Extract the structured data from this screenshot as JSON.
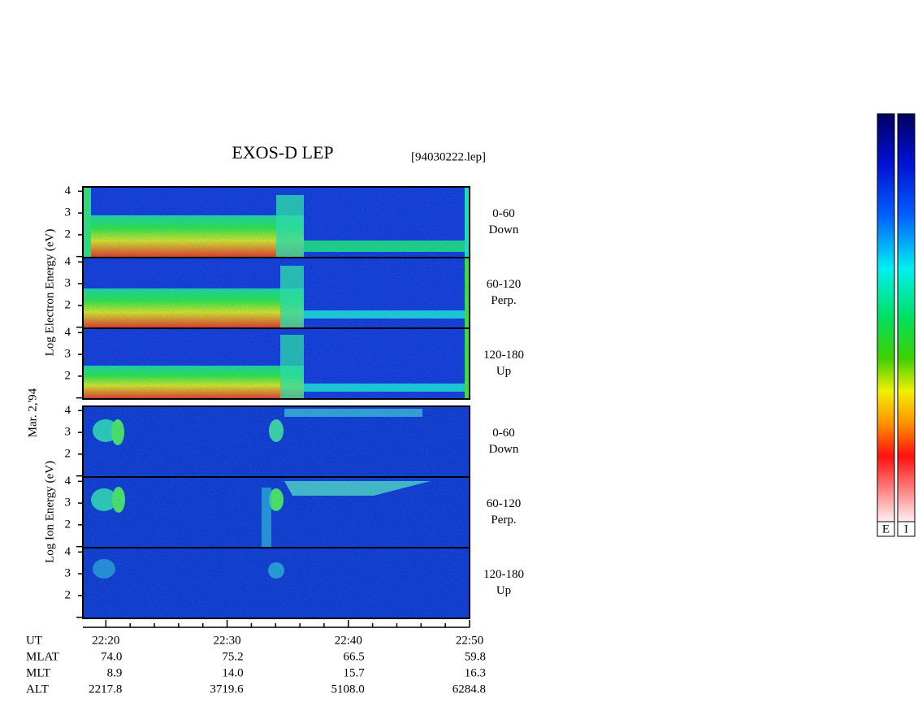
{
  "title": "EXOS-D LEP",
  "file": "[94030222.lep]",
  "date": "Mar. 2,'94",
  "ylim": [
    0.95,
    4.2
  ],
  "yticks": [
    2,
    3,
    4
  ],
  "yminor": [
    1
  ],
  "xlim": [
    1338.1,
    1370
  ],
  "xticks": [
    {
      "value": 1340,
      "label": "22:20"
    },
    {
      "value": 1350,
      "label": "22:30"
    },
    {
      "value": 1360,
      "label": "22:40"
    },
    {
      "value": 1370,
      "label": "22:50"
    }
  ],
  "xminor": [
    1342,
    1344,
    1346,
    1348,
    1352,
    1354,
    1356,
    1358,
    1362,
    1364,
    1366,
    1368
  ],
  "groups": [
    {
      "label": "Log Electron Energy (eV)",
      "panels": [
        {
          "angle": "0-60",
          "dir": "Down"
        },
        {
          "angle": "60-120",
          "dir": "Perp."
        },
        {
          "angle": "120-180",
          "dir": "Up"
        }
      ]
    },
    {
      "label": "Log Ion Energy (eV)",
      "panels": [
        {
          "angle": "0-60",
          "dir": "Down"
        },
        {
          "angle": "60-120",
          "dir": "Perp."
        },
        {
          "angle": "120-180",
          "dir": "Up"
        }
      ]
    }
  ],
  "ephemeris": {
    "time_label": "UT",
    "rows": [
      {
        "label": "MLAT",
        "values": [
          "74.0",
          "75.2",
          "66.5",
          "59.8"
        ]
      },
      {
        "label": "MLT",
        "values": [
          "8.9",
          "14.0",
          "15.7",
          "16.3"
        ]
      },
      {
        "label": "ALT",
        "values": [
          "2217.8",
          "3719.6",
          "5108.0",
          "6284.8"
        ]
      }
    ]
  },
  "colorbars": [
    "E",
    "I"
  ]
}
